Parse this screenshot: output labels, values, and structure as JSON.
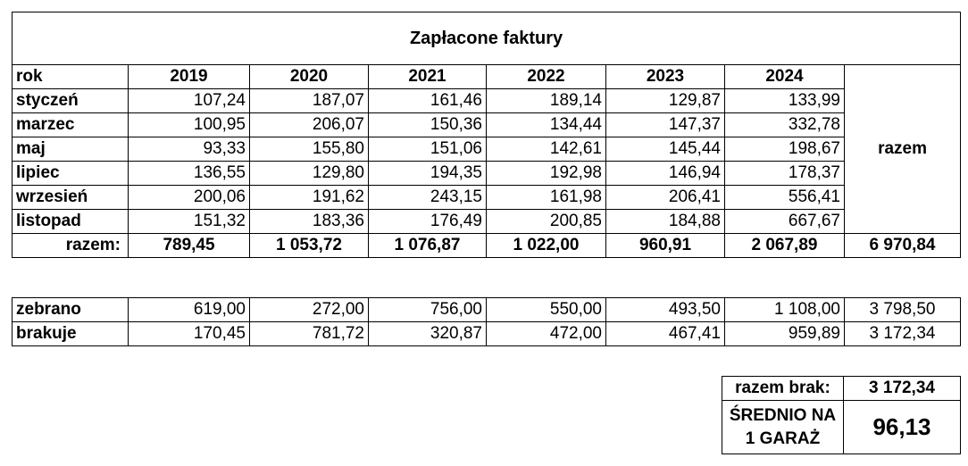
{
  "title": "Zapłacone faktury",
  "header": {
    "row_label": "rok",
    "years": [
      "2019",
      "2020",
      "2021",
      "2022",
      "2023",
      "2024"
    ],
    "total_label": "razem"
  },
  "months": [
    {
      "name": "styczeń",
      "values": [
        "107,24",
        "187,07",
        "161,46",
        "189,14",
        "129,87",
        "133,99"
      ]
    },
    {
      "name": "marzec",
      "values": [
        "100,95",
        "206,07",
        "150,36",
        "134,44",
        "147,37",
        "332,78"
      ]
    },
    {
      "name": "maj",
      "values": [
        "93,33",
        "155,80",
        "151,06",
        "142,61",
        "145,44",
        "198,67"
      ]
    },
    {
      "name": "lipiec",
      "values": [
        "136,55",
        "129,80",
        "194,35",
        "192,98",
        "146,94",
        "178,37"
      ]
    },
    {
      "name": "wrzesień",
      "values": [
        "200,06",
        "191,62",
        "243,15",
        "161,98",
        "206,41",
        "556,41"
      ]
    },
    {
      "name": "listopad",
      "values": [
        "151,32",
        "183,36",
        "176,49",
        "200,85",
        "184,88",
        "667,67"
      ]
    }
  ],
  "totals": {
    "label": "razem:",
    "values": [
      "789,45",
      "1 053,72",
      "1 076,87",
      "1 022,00",
      "960,91",
      "2 067,89"
    ],
    "grand": "6 970,84"
  },
  "collected": {
    "label": "zebrano",
    "values": [
      "619,00",
      "272,00",
      "756,00",
      "550,00",
      "493,50",
      "1 108,00"
    ],
    "total": "3 798,50"
  },
  "missing": {
    "label": "brakuje",
    "values": [
      "170,45",
      "781,72",
      "320,87",
      "472,00",
      "467,41",
      "959,89"
    ],
    "total": "3 172,34"
  },
  "summary": {
    "missing_total_label": "razem brak:",
    "missing_total_value": "3 172,34",
    "average_label_line1": "ŚREDNIO NA",
    "average_label_line2": "1 GARAŻ",
    "average_value": "96,13"
  }
}
